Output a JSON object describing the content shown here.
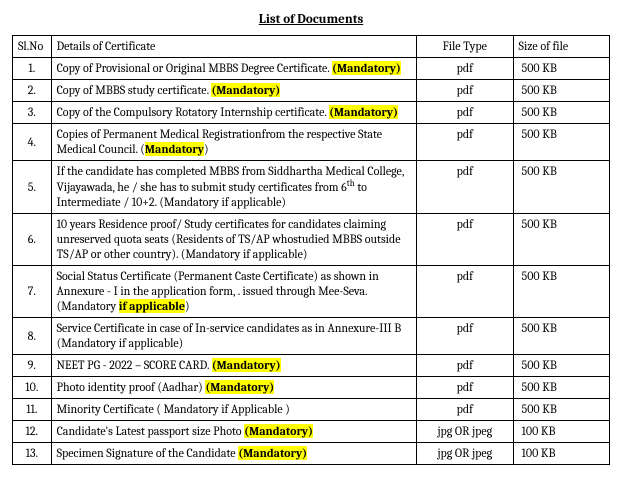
{
  "title": "List of Documents",
  "headers": {
    "slno": "Sl.No",
    "details": "Details of Certificate",
    "filetype": "File Type",
    "size": "Size of file"
  },
  "rows": [
    {
      "n": "1.",
      "pre": "Copy of Provisional or Original MBBS Degree Certificate. ",
      "tag": "(Mandatory)",
      "post": "",
      "ft": "pdf",
      "sz": "500 KB"
    },
    {
      "n": "2.",
      "pre": "Copy of MBBS study certificate. ",
      "tag": "(Mandatory)",
      "post": "",
      "ft": "pdf",
      "sz": "500 KB"
    },
    {
      "n": "3.",
      "pre": "Copy of the Compulsory Rotatory Internship certificate. ",
      "tag": "(Mandatory)",
      "post": "",
      "ft": "pdf",
      "sz": "500 KB"
    },
    {
      "n": "4.",
      "pre": "Copies of  Permanent Medical Registrationfrom the respective State Medical Council. (",
      "tag": "Mandatory",
      "post": ")",
      "ft": "pdf",
      "sz": "500 KB"
    },
    {
      "n": "5.",
      "pre_a": "If the candidate has  completed MBBS from Siddhartha Medical College, Vijayawada, he / she has to submit study certificates from 6",
      "pre_b": " to Intermediate /  10+2. (Mandatory if applicable)",
      "sup": "th",
      "tag": "",
      "post": "",
      "ft": "pdf",
      "sz": "500 KB"
    },
    {
      "n": "6.",
      "pre": "10 years Residence proof/ Study certificates for candidates claiming unreserved quota seats (Residents of TS/AP whostudied MBBS outside TS/AP or  other country). (Mandatory if applicable)",
      "tag": "",
      "post": "",
      "ft": "pdf",
      "sz": "500 KB"
    },
    {
      "n": "7.",
      "pre": "Social Status Certificate (Permanent Caste Certificate) as shown in Annexure - I in the application form, . issued through Mee-Seva. (Mandatory ",
      "tag": "if applicable",
      "post": ")",
      "ft": "pdf",
      "sz": "500 KB"
    },
    {
      "n": "8.",
      "pre": "Service Certificate in case of In-service candidates as in Annexure-III B (Mandatory if applicable)",
      "tag": "",
      "post": "",
      "ft": "pdf",
      "sz": "500 KB"
    },
    {
      "n": "9.",
      "pre": "NEET PG - 2022 – SCORE CARD. ",
      "tag": "(Mandatory)",
      "post": "",
      "ft": "pdf",
      "sz": "500 KB"
    },
    {
      "n": "10.",
      "pre": "Photo identity proof (Aadhar) ",
      "tag": "(Mandatory)",
      "post": "",
      "ft": "pdf",
      "sz": "500 KB"
    },
    {
      "n": "11.",
      "pre": "Minority Certificate ( Mandatory if Applicable )",
      "tag": "",
      "post": "",
      "ft": "pdf",
      "sz": "500 KB"
    },
    {
      "n": "12.",
      "pre": "Candidate's Latest passport size Photo ",
      "tag": "(Mandatory)",
      "post": "",
      "ft": "jpg OR jpeg",
      "sz": "100 KB"
    },
    {
      "n": "13.",
      "pre": "Specimen Signature of the Candidate ",
      "tag": "(Mandatory)",
      "post": "",
      "ft": "jpg OR jpeg",
      "sz": "100 KB"
    }
  ]
}
